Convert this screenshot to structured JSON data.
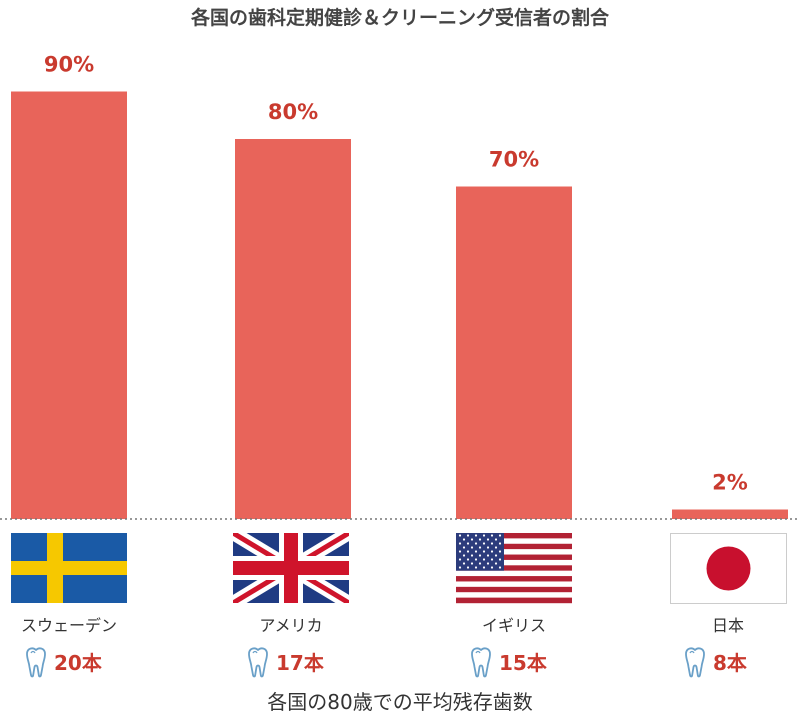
{
  "chart_data": {
    "type": "bar",
    "title": "各国の歯科定期健診＆クリーニング受信者の割合",
    "categories": [
      "スウェーデン",
      "アメリカ",
      "イギリス",
      "日本"
    ],
    "values": [
      90,
      80,
      70,
      2
    ],
    "value_labels": [
      "90%",
      "80%",
      "70%",
      "2%"
    ],
    "ylim": [
      0,
      100
    ],
    "bar_color": "#e8645a",
    "label_color": "#c93a2e",
    "grid": false,
    "secondary": {
      "title": "各国の80歳での平均残存歯数",
      "values": [
        20,
        17,
        15,
        8
      ],
      "value_labels": [
        "20本",
        "17本",
        "15本",
        "8本"
      ]
    },
    "flags": [
      "sweden-flag",
      "uk-flag",
      "usa-flag",
      "japan-flag"
    ],
    "icon": "tooth-icon"
  }
}
